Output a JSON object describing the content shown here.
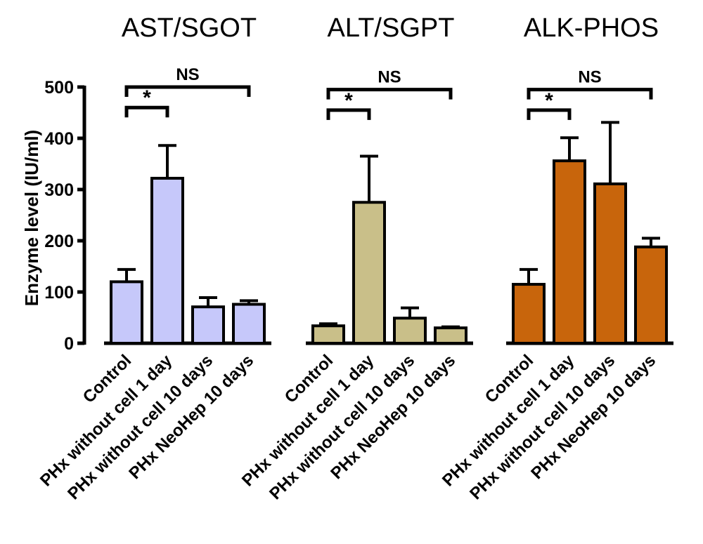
{
  "chart_data": {
    "type": "bar",
    "ylabel": "Enzyme level (IU/ml)",
    "ylim": [
      0,
      500
    ],
    "yticks": [
      0,
      100,
      200,
      300,
      400,
      500
    ],
    "categories": [
      "Control",
      "PHx without cell 1 day",
      "PHx without cell 10 days",
      "PHx NeoHep 10 days"
    ],
    "groups": [
      {
        "title": "AST/SGOT",
        "color": "#c6c8fa",
        "values": [
          120,
          322,
          71,
          76
        ],
        "errors": [
          24,
          64,
          18,
          7
        ],
        "annotations": [
          {
            "label": "*",
            "from": 0,
            "to": 1,
            "level": 460
          },
          {
            "label": "NS",
            "from": 0,
            "to": 3,
            "level": 500
          }
        ]
      },
      {
        "title": "ALT/SGPT",
        "color": "#c9bf89",
        "values": [
          34,
          275,
          49,
          30
        ],
        "errors": [
          4,
          90,
          20,
          2
        ],
        "annotations": [
          {
            "label": "*",
            "from": 0,
            "to": 1,
            "level": 455
          },
          {
            "label": "NS",
            "from": 0,
            "to": 3,
            "level": 495
          }
        ]
      },
      {
        "title": "ALK-PHOS",
        "color": "#c8650c",
        "values": [
          115,
          356,
          311,
          188
        ],
        "errors": [
          29,
          45,
          120,
          17
        ],
        "annotations": [
          {
            "label": "*",
            "from": 0,
            "to": 1,
            "level": 455
          },
          {
            "label": "NS",
            "from": 0,
            "to": 3,
            "level": 495
          }
        ]
      }
    ]
  }
}
